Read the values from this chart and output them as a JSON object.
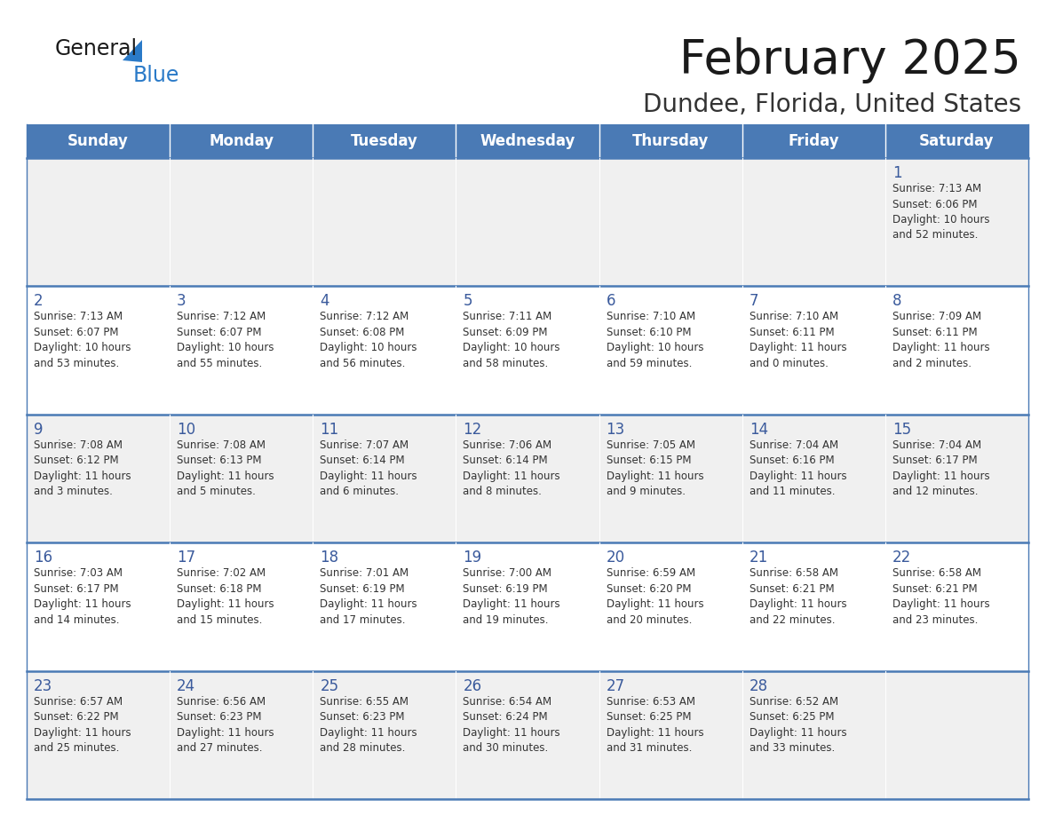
{
  "title": "February 2025",
  "subtitle": "Dundee, Florida, United States",
  "days_of_week": [
    "Sunday",
    "Monday",
    "Tuesday",
    "Wednesday",
    "Thursday",
    "Friday",
    "Saturday"
  ],
  "header_bg": "#4a7ab5",
  "header_text": "#ffffff",
  "cell_bg_odd": "#f0f0f0",
  "cell_bg_even": "#ffffff",
  "date_text_color": "#3a5a9c",
  "info_text_color": "#333333",
  "border_color": "#4a7ab5",
  "title_color": "#1a1a1a",
  "subtitle_color": "#333333",
  "logo_general_color": "#1a1a1a",
  "logo_blue_color": "#2a7ac8",
  "logo_triangle_color": "#2a7ac8",
  "weeks": [
    [
      {
        "day": null,
        "info": null
      },
      {
        "day": null,
        "info": null
      },
      {
        "day": null,
        "info": null
      },
      {
        "day": null,
        "info": null
      },
      {
        "day": null,
        "info": null
      },
      {
        "day": null,
        "info": null
      },
      {
        "day": 1,
        "info": "Sunrise: 7:13 AM\nSunset: 6:06 PM\nDaylight: 10 hours\nand 52 minutes."
      }
    ],
    [
      {
        "day": 2,
        "info": "Sunrise: 7:13 AM\nSunset: 6:07 PM\nDaylight: 10 hours\nand 53 minutes."
      },
      {
        "day": 3,
        "info": "Sunrise: 7:12 AM\nSunset: 6:07 PM\nDaylight: 10 hours\nand 55 minutes."
      },
      {
        "day": 4,
        "info": "Sunrise: 7:12 AM\nSunset: 6:08 PM\nDaylight: 10 hours\nand 56 minutes."
      },
      {
        "day": 5,
        "info": "Sunrise: 7:11 AM\nSunset: 6:09 PM\nDaylight: 10 hours\nand 58 minutes."
      },
      {
        "day": 6,
        "info": "Sunrise: 7:10 AM\nSunset: 6:10 PM\nDaylight: 10 hours\nand 59 minutes."
      },
      {
        "day": 7,
        "info": "Sunrise: 7:10 AM\nSunset: 6:11 PM\nDaylight: 11 hours\nand 0 minutes."
      },
      {
        "day": 8,
        "info": "Sunrise: 7:09 AM\nSunset: 6:11 PM\nDaylight: 11 hours\nand 2 minutes."
      }
    ],
    [
      {
        "day": 9,
        "info": "Sunrise: 7:08 AM\nSunset: 6:12 PM\nDaylight: 11 hours\nand 3 minutes."
      },
      {
        "day": 10,
        "info": "Sunrise: 7:08 AM\nSunset: 6:13 PM\nDaylight: 11 hours\nand 5 minutes."
      },
      {
        "day": 11,
        "info": "Sunrise: 7:07 AM\nSunset: 6:14 PM\nDaylight: 11 hours\nand 6 minutes."
      },
      {
        "day": 12,
        "info": "Sunrise: 7:06 AM\nSunset: 6:14 PM\nDaylight: 11 hours\nand 8 minutes."
      },
      {
        "day": 13,
        "info": "Sunrise: 7:05 AM\nSunset: 6:15 PM\nDaylight: 11 hours\nand 9 minutes."
      },
      {
        "day": 14,
        "info": "Sunrise: 7:04 AM\nSunset: 6:16 PM\nDaylight: 11 hours\nand 11 minutes."
      },
      {
        "day": 15,
        "info": "Sunrise: 7:04 AM\nSunset: 6:17 PM\nDaylight: 11 hours\nand 12 minutes."
      }
    ],
    [
      {
        "day": 16,
        "info": "Sunrise: 7:03 AM\nSunset: 6:17 PM\nDaylight: 11 hours\nand 14 minutes."
      },
      {
        "day": 17,
        "info": "Sunrise: 7:02 AM\nSunset: 6:18 PM\nDaylight: 11 hours\nand 15 minutes."
      },
      {
        "day": 18,
        "info": "Sunrise: 7:01 AM\nSunset: 6:19 PM\nDaylight: 11 hours\nand 17 minutes."
      },
      {
        "day": 19,
        "info": "Sunrise: 7:00 AM\nSunset: 6:19 PM\nDaylight: 11 hours\nand 19 minutes."
      },
      {
        "day": 20,
        "info": "Sunrise: 6:59 AM\nSunset: 6:20 PM\nDaylight: 11 hours\nand 20 minutes."
      },
      {
        "day": 21,
        "info": "Sunrise: 6:58 AM\nSunset: 6:21 PM\nDaylight: 11 hours\nand 22 minutes."
      },
      {
        "day": 22,
        "info": "Sunrise: 6:58 AM\nSunset: 6:21 PM\nDaylight: 11 hours\nand 23 minutes."
      }
    ],
    [
      {
        "day": 23,
        "info": "Sunrise: 6:57 AM\nSunset: 6:22 PM\nDaylight: 11 hours\nand 25 minutes."
      },
      {
        "day": 24,
        "info": "Sunrise: 6:56 AM\nSunset: 6:23 PM\nDaylight: 11 hours\nand 27 minutes."
      },
      {
        "day": 25,
        "info": "Sunrise: 6:55 AM\nSunset: 6:23 PM\nDaylight: 11 hours\nand 28 minutes."
      },
      {
        "day": 26,
        "info": "Sunrise: 6:54 AM\nSunset: 6:24 PM\nDaylight: 11 hours\nand 30 minutes."
      },
      {
        "day": 27,
        "info": "Sunrise: 6:53 AM\nSunset: 6:25 PM\nDaylight: 11 hours\nand 31 minutes."
      },
      {
        "day": 28,
        "info": "Sunrise: 6:52 AM\nSunset: 6:25 PM\nDaylight: 11 hours\nand 33 minutes."
      },
      {
        "day": null,
        "info": null
      }
    ]
  ]
}
